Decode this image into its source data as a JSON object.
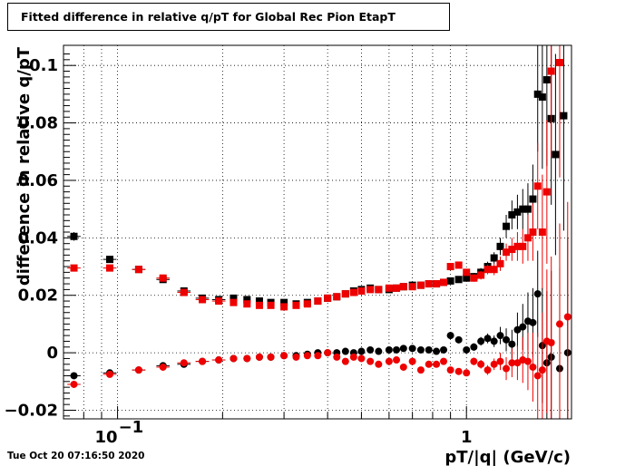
{
  "chart_data": {
    "type": "scatter",
    "title": "Fitted difference in relative q/pT for Global Rec Pion EtapT",
    "xlabel": "pT/|q| (GeV/c)",
    "ylabel": "difference in relative q/pT",
    "x_scale": "log",
    "xlim": [
      0.07,
      2.0
    ],
    "ylim": [
      -0.023,
      0.107
    ],
    "grid": true,
    "x_tick_labels": [
      {
        "value": 0.1,
        "base": "10",
        "exp": "−1"
      },
      {
        "value": 1.0,
        "base": "1",
        "exp": ""
      }
    ],
    "y_ticks": [
      {
        "value": 0.1,
        "label": "0.1"
      },
      {
        "value": 0.08,
        "label": "0.08"
      },
      {
        "value": 0.06,
        "label": "0.06"
      },
      {
        "value": 0.04,
        "label": "0.04"
      },
      {
        "value": 0.02,
        "label": "0.02"
      },
      {
        "value": 0,
        "label": "0"
      },
      {
        "value": -0.02,
        "label": "−0.02"
      }
    ],
    "series": [
      {
        "marker": "square",
        "color": "#000000",
        "points": [
          [
            0.075,
            0.0405,
            0.0015
          ],
          [
            0.095,
            0.0325,
            0.001
          ],
          [
            0.115,
            0.029,
            0.0008
          ],
          [
            0.135,
            0.0255,
            0.0008
          ],
          [
            0.155,
            0.0215,
            0.0006
          ],
          [
            0.175,
            0.019,
            0.0006
          ],
          [
            0.195,
            0.0185,
            0.0005
          ],
          [
            0.215,
            0.019,
            0.0005
          ],
          [
            0.235,
            0.0185,
            0.0005
          ],
          [
            0.255,
            0.018,
            0.0005
          ],
          [
            0.275,
            0.0175,
            0.0005
          ],
          [
            0.3,
            0.0175,
            0.0005
          ],
          [
            0.325,
            0.017,
            0.0005
          ],
          [
            0.35,
            0.0175,
            0.0005
          ],
          [
            0.375,
            0.018,
            0.0005
          ],
          [
            0.4,
            0.019,
            0.0005
          ],
          [
            0.425,
            0.0195,
            0.0006
          ],
          [
            0.45,
            0.0205,
            0.0006
          ],
          [
            0.475,
            0.0215,
            0.0006
          ],
          [
            0.5,
            0.022,
            0.0006
          ],
          [
            0.53,
            0.0225,
            0.0007
          ],
          [
            0.56,
            0.022,
            0.0007
          ],
          [
            0.6,
            0.022,
            0.0007
          ],
          [
            0.63,
            0.0225,
            0.0008
          ],
          [
            0.66,
            0.023,
            0.0008
          ],
          [
            0.7,
            0.0235,
            0.0008
          ],
          [
            0.74,
            0.0235,
            0.0009
          ],
          [
            0.78,
            0.024,
            0.0009
          ],
          [
            0.82,
            0.024,
            0.001
          ],
          [
            0.86,
            0.0245,
            0.001
          ],
          [
            0.9,
            0.025,
            0.0011
          ],
          [
            0.95,
            0.0255,
            0.0011
          ],
          [
            1.0,
            0.026,
            0.0012
          ],
          [
            1.05,
            0.0265,
            0.0013
          ],
          [
            1.1,
            0.028,
            0.0015
          ],
          [
            1.15,
            0.03,
            0.0017
          ],
          [
            1.2,
            0.033,
            0.002
          ],
          [
            1.25,
            0.037,
            0.003
          ],
          [
            1.3,
            0.044,
            0.004
          ],
          [
            1.35,
            0.048,
            0.005
          ],
          [
            1.4,
            0.049,
            0.006
          ],
          [
            1.45,
            0.05,
            0.007
          ],
          [
            1.5,
            0.05,
            0.009
          ],
          [
            1.55,
            0.0535,
            0.012
          ],
          [
            1.6,
            0.09,
            0.02
          ],
          [
            1.65,
            0.089,
            0.025
          ],
          [
            1.7,
            0.095,
            0.03
          ],
          [
            1.75,
            0.0815,
            0.03
          ],
          [
            1.8,
            0.069,
            0.035
          ],
          [
            1.9,
            0.0825,
            0.04
          ]
        ]
      },
      {
        "marker": "square",
        "color": "#ee0000",
        "points": [
          [
            0.075,
            0.0295,
            0.001
          ],
          [
            0.095,
            0.0295,
            0.0008
          ],
          [
            0.115,
            0.029,
            0.0007
          ],
          [
            0.135,
            0.026,
            0.0007
          ],
          [
            0.155,
            0.021,
            0.0006
          ],
          [
            0.175,
            0.0185,
            0.0005
          ],
          [
            0.195,
            0.018,
            0.0005
          ],
          [
            0.215,
            0.0175,
            0.0005
          ],
          [
            0.235,
            0.017,
            0.0005
          ],
          [
            0.255,
            0.0165,
            0.0005
          ],
          [
            0.275,
            0.0165,
            0.0005
          ],
          [
            0.3,
            0.016,
            0.0005
          ],
          [
            0.325,
            0.0165,
            0.0005
          ],
          [
            0.35,
            0.017,
            0.0005
          ],
          [
            0.375,
            0.018,
            0.0005
          ],
          [
            0.4,
            0.019,
            0.0005
          ],
          [
            0.425,
            0.0195,
            0.0006
          ],
          [
            0.45,
            0.0205,
            0.0006
          ],
          [
            0.475,
            0.021,
            0.0006
          ],
          [
            0.5,
            0.0215,
            0.0006
          ],
          [
            0.53,
            0.022,
            0.0007
          ],
          [
            0.56,
            0.022,
            0.0007
          ],
          [
            0.6,
            0.0225,
            0.0007
          ],
          [
            0.63,
            0.0225,
            0.0008
          ],
          [
            0.66,
            0.023,
            0.0008
          ],
          [
            0.7,
            0.023,
            0.0008
          ],
          [
            0.74,
            0.0235,
            0.0009
          ],
          [
            0.78,
            0.024,
            0.0009
          ],
          [
            0.82,
            0.024,
            0.001
          ],
          [
            0.86,
            0.0245,
            0.001
          ],
          [
            0.9,
            0.03,
            0.0011
          ],
          [
            0.95,
            0.0305,
            0.0011
          ],
          [
            1.0,
            0.028,
            0.0012
          ],
          [
            1.05,
            0.026,
            0.0013
          ],
          [
            1.1,
            0.027,
            0.0015
          ],
          [
            1.15,
            0.029,
            0.0017
          ],
          [
            1.2,
            0.029,
            0.002
          ],
          [
            1.25,
            0.031,
            0.0025
          ],
          [
            1.3,
            0.035,
            0.003
          ],
          [
            1.35,
            0.036,
            0.004
          ],
          [
            1.4,
            0.037,
            0.005
          ],
          [
            1.45,
            0.037,
            0.006
          ],
          [
            1.5,
            0.04,
            0.008
          ],
          [
            1.55,
            0.042,
            0.01
          ],
          [
            1.6,
            0.058,
            0.015
          ],
          [
            1.65,
            0.042,
            0.02
          ],
          [
            1.7,
            0.056,
            0.025
          ],
          [
            1.75,
            0.098,
            0.03
          ],
          [
            1.85,
            0.101,
            0.04
          ]
        ]
      },
      {
        "marker": "circle",
        "color": "#000000",
        "points": [
          [
            0.075,
            -0.008,
            0.0008
          ],
          [
            0.095,
            -0.007,
            0.0006
          ],
          [
            0.115,
            -0.006,
            0.0005
          ],
          [
            0.135,
            -0.0045,
            0.0005
          ],
          [
            0.155,
            -0.004,
            0.0004
          ],
          [
            0.175,
            -0.003,
            0.0004
          ],
          [
            0.195,
            -0.0025,
            0.0004
          ],
          [
            0.215,
            -0.002,
            0.0004
          ],
          [
            0.235,
            -0.002,
            0.0004
          ],
          [
            0.255,
            -0.0015,
            0.0004
          ],
          [
            0.275,
            -0.0015,
            0.0004
          ],
          [
            0.3,
            -0.001,
            0.0004
          ],
          [
            0.325,
            -0.001,
            0.0004
          ],
          [
            0.35,
            -0.0005,
            0.0004
          ],
          [
            0.375,
            0.0,
            0.0004
          ],
          [
            0.4,
            0.0,
            0.0004
          ],
          [
            0.425,
            0.0,
            0.0005
          ],
          [
            0.45,
            0.0005,
            0.0005
          ],
          [
            0.475,
            0.0,
            0.0005
          ],
          [
            0.5,
            0.0005,
            0.0005
          ],
          [
            0.53,
            0.001,
            0.0006
          ],
          [
            0.56,
            0.0005,
            0.0006
          ],
          [
            0.6,
            0.001,
            0.0006
          ],
          [
            0.63,
            0.001,
            0.0007
          ],
          [
            0.66,
            0.0015,
            0.0007
          ],
          [
            0.7,
            0.0015,
            0.0008
          ],
          [
            0.74,
            0.001,
            0.0008
          ],
          [
            0.78,
            0.001,
            0.0009
          ],
          [
            0.82,
            0.0005,
            0.001
          ],
          [
            0.86,
            0.001,
            0.001
          ],
          [
            0.9,
            0.006,
            0.001
          ],
          [
            0.95,
            0.0045,
            0.0011
          ],
          [
            1.0,
            0.001,
            0.0012
          ],
          [
            1.05,
            0.002,
            0.0013
          ],
          [
            1.1,
            0.004,
            0.0015
          ],
          [
            1.15,
            0.005,
            0.0017
          ],
          [
            1.2,
            0.004,
            0.002
          ],
          [
            1.25,
            0.006,
            0.003
          ],
          [
            1.3,
            0.0045,
            0.004
          ],
          [
            1.35,
            0.003,
            0.005
          ],
          [
            1.4,
            0.008,
            0.006
          ],
          [
            1.45,
            0.009,
            0.008
          ],
          [
            1.5,
            0.011,
            0.01
          ],
          [
            1.55,
            0.0105,
            0.012
          ],
          [
            1.6,
            0.0205,
            0.015
          ],
          [
            1.65,
            0.0025,
            0.02
          ],
          [
            1.7,
            -0.0035,
            0.025
          ],
          [
            1.75,
            -0.0015,
            0.03
          ],
          [
            1.85,
            -0.0055,
            0.035
          ],
          [
            1.95,
            0.0,
            0.04
          ]
        ]
      },
      {
        "marker": "circle",
        "color": "#ee0000",
        "points": [
          [
            0.075,
            -0.011,
            0.0008
          ],
          [
            0.095,
            -0.0075,
            0.0006
          ],
          [
            0.115,
            -0.006,
            0.0005
          ],
          [
            0.135,
            -0.005,
            0.0005
          ],
          [
            0.155,
            -0.0035,
            0.0004
          ],
          [
            0.175,
            -0.003,
            0.0004
          ],
          [
            0.195,
            -0.0025,
            0.0004
          ],
          [
            0.215,
            -0.002,
            0.0004
          ],
          [
            0.235,
            -0.002,
            0.0004
          ],
          [
            0.255,
            -0.0015,
            0.0004
          ],
          [
            0.275,
            -0.0015,
            0.0004
          ],
          [
            0.3,
            -0.001,
            0.0004
          ],
          [
            0.325,
            -0.0015,
            0.0004
          ],
          [
            0.35,
            -0.001,
            0.0004
          ],
          [
            0.375,
            -0.001,
            0.0004
          ],
          [
            0.4,
            0.0,
            0.0004
          ],
          [
            0.425,
            -0.0015,
            0.0005
          ],
          [
            0.45,
            -0.003,
            0.0005
          ],
          [
            0.475,
            -0.0015,
            0.0005
          ],
          [
            0.5,
            -0.002,
            0.0005
          ],
          [
            0.53,
            -0.003,
            0.0006
          ],
          [
            0.56,
            -0.004,
            0.0006
          ],
          [
            0.6,
            -0.003,
            0.0006
          ],
          [
            0.63,
            -0.0025,
            0.0007
          ],
          [
            0.66,
            -0.005,
            0.0007
          ],
          [
            0.7,
            -0.003,
            0.0008
          ],
          [
            0.74,
            -0.006,
            0.0008
          ],
          [
            0.78,
            -0.004,
            0.0009
          ],
          [
            0.82,
            -0.004,
            0.001
          ],
          [
            0.86,
            -0.003,
            0.001
          ],
          [
            0.9,
            -0.006,
            0.001
          ],
          [
            0.95,
            -0.0065,
            0.0011
          ],
          [
            1.0,
            -0.007,
            0.0012
          ],
          [
            1.05,
            -0.003,
            0.0013
          ],
          [
            1.1,
            -0.004,
            0.0015
          ],
          [
            1.15,
            -0.006,
            0.0017
          ],
          [
            1.2,
            -0.004,
            0.002
          ],
          [
            1.25,
            -0.003,
            0.003
          ],
          [
            1.3,
            -0.0055,
            0.004
          ],
          [
            1.35,
            -0.0035,
            0.005
          ],
          [
            1.4,
            -0.0035,
            0.006
          ],
          [
            1.45,
            -0.0025,
            0.008
          ],
          [
            1.5,
            -0.003,
            0.01
          ],
          [
            1.55,
            -0.005,
            0.012
          ],
          [
            1.6,
            -0.008,
            0.015
          ],
          [
            1.65,
            -0.006,
            0.02
          ],
          [
            1.7,
            0.004,
            0.025
          ],
          [
            1.75,
            0.0035,
            0.03
          ],
          [
            1.85,
            0.01,
            0.035
          ],
          [
            1.95,
            0.0125,
            0.04
          ]
        ]
      }
    ]
  },
  "timestamp": "Tue Oct 20 07:16:50 2020"
}
